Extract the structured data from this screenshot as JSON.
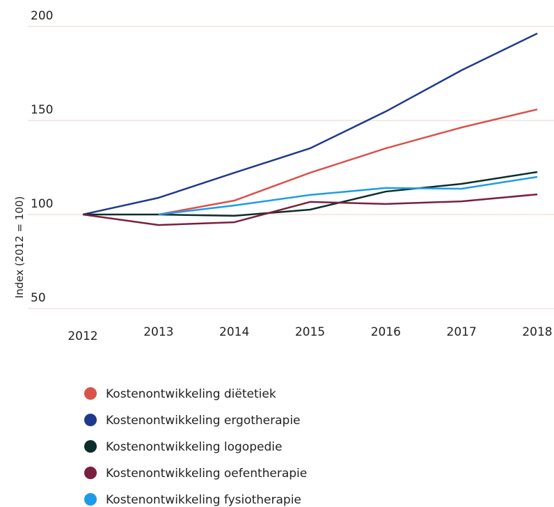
{
  "chart_data": {
    "type": "line",
    "y_label": "Index (2012 = 100)",
    "categories": [
      "2012",
      "2013",
      "2014",
      "2015",
      "2016",
      "2017",
      "2018"
    ],
    "series": [
      {
        "name": "Kostenontwikkeling diëtetiek",
        "color": "#d9534a",
        "values": [
          null,
          100,
          107.4,
          122.2,
          135.2,
          146.3,
          155.9
        ]
      },
      {
        "name": "Kostenontwikkeling ergotherapie",
        "color": "#1f3a8a",
        "values": [
          100,
          108.9,
          122.2,
          135.2,
          154.8,
          176.7,
          196.3
        ]
      },
      {
        "name": "Kostenontwikkeling logopedie",
        "color": "#0a2e2a",
        "values": [
          100,
          100,
          99.3,
          102.6,
          112.2,
          116.3,
          122.6
        ]
      },
      {
        "name": "Kostenontwikkeling oefentherapie",
        "color": "#7a1f3d",
        "values": [
          100,
          94.4,
          95.9,
          106.7,
          105.6,
          107.0,
          110.7
        ]
      },
      {
        "name": "Kostenontwikkeling fysiotherapie",
        "color": "#1e9be8",
        "values": [
          null,
          100,
          104.8,
          110.4,
          114.1,
          113.7,
          120.0
        ]
      }
    ],
    "ylim": [
      50,
      200
    ],
    "yticks": [
      50,
      100,
      150,
      200
    ],
    "grid": true
  }
}
